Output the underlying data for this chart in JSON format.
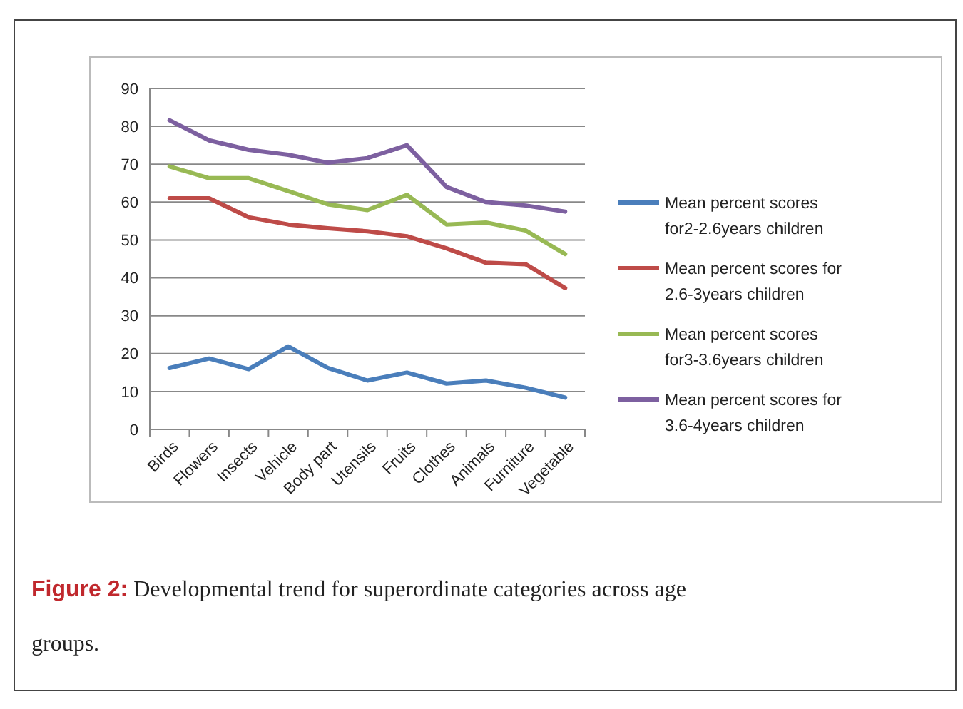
{
  "chart_data": {
    "type": "line",
    "categories": [
      "Birds",
      "Flowers",
      "Insects",
      "Vehicle",
      "Body part",
      "Utensils",
      "Fruits",
      "Clothes",
      "Animals",
      "Furniture",
      "Vegetable"
    ],
    "series": [
      {
        "name": "Mean percent scores for2-2.6years children",
        "color": "#4a7ebb",
        "values": [
          16.2,
          18.7,
          15.9,
          21.9,
          16.2,
          12.9,
          15,
          12.1,
          12.9,
          11,
          8.4
        ]
      },
      {
        "name": "Mean percent scores for 2.6-3years children",
        "color": "#be4b48",
        "values": [
          61,
          61,
          56,
          54.1,
          53.1,
          52.3,
          51,
          47.8,
          44,
          43.6,
          37.3
        ]
      },
      {
        "name": "Mean percent scores for3-3.6years children",
        "color": "#98b954",
        "values": [
          69.4,
          66.3,
          66.3,
          62.9,
          59.4,
          57.9,
          61.9,
          54.1,
          54.6,
          52.5,
          46.3
        ]
      },
      {
        "name": "Mean percent scores for 3.6-4years children",
        "color": "#7d60a0",
        "values": [
          81.6,
          76.3,
          73.8,
          72.5,
          70.4,
          71.6,
          75,
          64,
          60,
          59.1,
          57.5
        ]
      }
    ],
    "ylim": [
      0,
      90
    ],
    "yticks": [
      0,
      10,
      20,
      30,
      40,
      50,
      60,
      70,
      80,
      90
    ],
    "grid": "y",
    "legend": "right",
    "marker": "none",
    "line_style": "solid",
    "annotations": [
      "Figure 2: Developmental trend for superordinate categories across age groups."
    ]
  }
}
